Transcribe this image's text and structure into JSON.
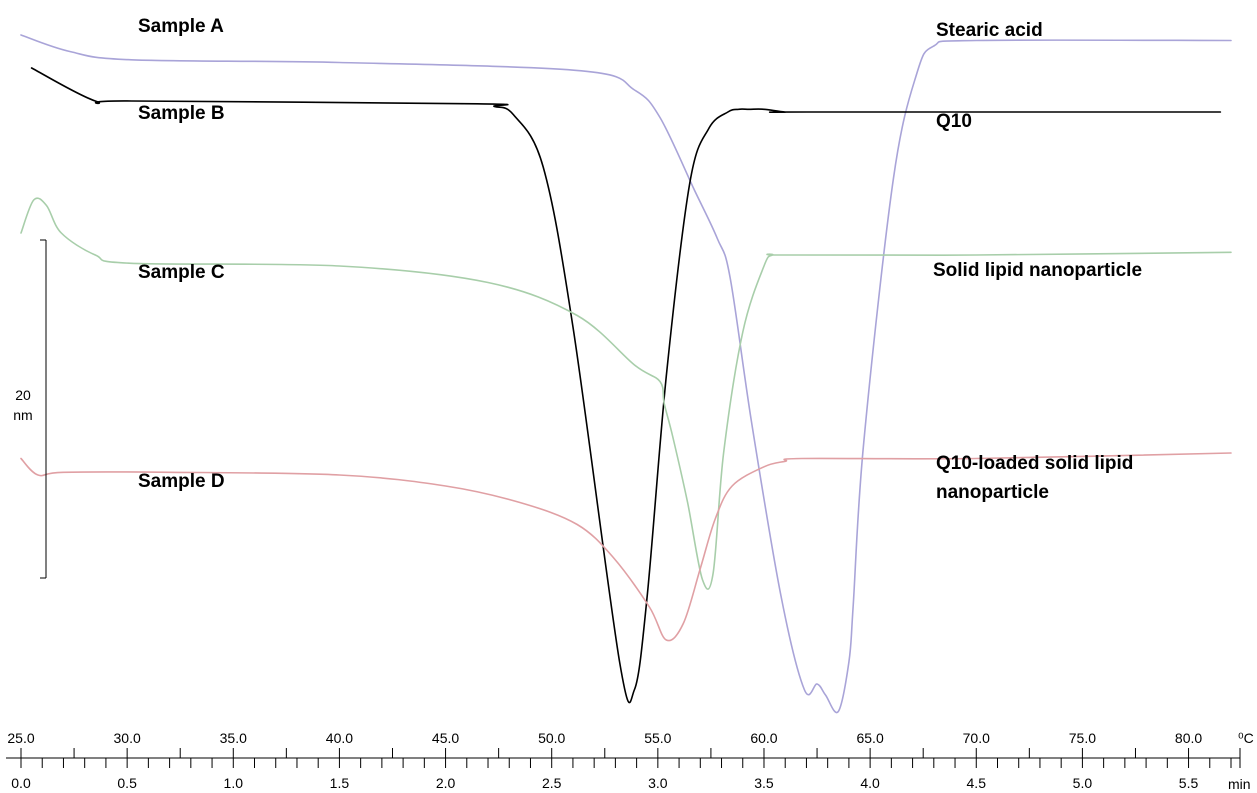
{
  "chart_data": {
    "type": "line",
    "title": "",
    "scale_bar": {
      "value": "20",
      "unit": "nm"
    },
    "x_axes": {
      "temperature": {
        "unit": "⁰C",
        "min": 25.0,
        "max": 82.0,
        "tick_labels": [
          "25.0",
          "30.0",
          "35.0",
          "40.0",
          "45.0",
          "50.0",
          "55.0",
          "60.0",
          "65.0",
          "70.0",
          "75.0",
          "80.0"
        ]
      },
      "time": {
        "unit": "min",
        "min": 0.0,
        "max": 5.7,
        "tick_labels": [
          "0.0",
          "0.5",
          "1.0",
          "1.5",
          "2.0",
          "2.5",
          "3.0",
          "3.5",
          "4.0",
          "4.5",
          "5.0",
          "5.5"
        ]
      }
    },
    "series": [
      {
        "name": "Stearic acid",
        "sample": "Sample A",
        "color": "#a9a4d8",
        "x": [
          25.0,
          27.3,
          30.2,
          40.0,
          51.4,
          53.9,
          55.1,
          56.7,
          57.8,
          58.4,
          59.4,
          60.8,
          61.9,
          62.5,
          62.9,
          63.5,
          64.0,
          64.2,
          64.7,
          66.1,
          67.2,
          68.0,
          70.0,
          82.0
        ],
        "y": [
          -4.0,
          -7.0,
          -8.5,
          -9.0,
          -10.5,
          -14.0,
          -19.0,
          -32.0,
          -41.0,
          -48.0,
          -74.0,
          -106.0,
          -123.0,
          -122.0,
          -124.0,
          -127.0,
          -118.0,
          -108.0,
          -78.0,
          -30.0,
          -11.0,
          -6.0,
          -5.0,
          -5.0
        ]
      },
      {
        "name": "Q10",
        "sample": "Sample B",
        "color": "#000000",
        "x": [
          25.5,
          28.5,
          30.2,
          46.5,
          47.3,
          48.2,
          49.6,
          51.0,
          53.2,
          53.9,
          54.5,
          55.4,
          56.5,
          57.4,
          58.3,
          58.8,
          59.3,
          60.0,
          61.0,
          62.0,
          81.5
        ],
        "y": [
          -10.0,
          -16.0,
          -16.0,
          -16.5,
          -17.0,
          -18.5,
          -28.0,
          -57.0,
          -118.0,
          -123.0,
          -106.0,
          -66.0,
          -31.0,
          -21.0,
          -18.0,
          -17.5,
          -17.5,
          -17.5,
          -18.0,
          -18.0,
          -18.0
        ]
      },
      {
        "name": "Solid lipid nanoparticle",
        "sample": "Sample C",
        "color": "#a8ceaa",
        "x": [
          25.0,
          25.6,
          26.2,
          26.9,
          28.5,
          30.2,
          40.0,
          47.0,
          51.2,
          53.9,
          55.1,
          55.3,
          55.7,
          56.4,
          57.1,
          57.6,
          58.1,
          59.0,
          60.0,
          60.4,
          61.0,
          70.0,
          82.0
        ],
        "y": [
          -40.0,
          -34.0,
          -35.0,
          -40.0,
          -44.0,
          -45.5,
          -46.0,
          -49.0,
          -55.0,
          -64.0,
          -67.0,
          -71.0,
          -77.0,
          -89.0,
          -103.0,
          -102.0,
          -80.0,
          -58.0,
          -46.0,
          -44.0,
          -44.0,
          -44.0,
          -43.5
        ]
      },
      {
        "name": "Q10-loaded solid lipid nanoparticle",
        "sample": "Sample D",
        "color": "#e0a0a4",
        "x": [
          25.0,
          25.8,
          27.0,
          32.0,
          40.0,
          45.0,
          48.5,
          51.2,
          52.9,
          54.6,
          55.4,
          56.2,
          57.0,
          57.7,
          58.5,
          60.0,
          61.0,
          61.8,
          70.0,
          82.0
        ],
        "y": [
          -81.0,
          -84.0,
          -83.5,
          -83.5,
          -84.0,
          -86.0,
          -89.0,
          -93.0,
          -99.0,
          -108.0,
          -114.0,
          -111.0,
          -101.0,
          -92.0,
          -86.0,
          -82.5,
          -81.5,
          -81.0,
          -81.0,
          -80.0
        ]
      }
    ]
  },
  "labels": {
    "sample_a": "Sample A",
    "sample_b": "Sample B",
    "sample_c": "Sample C",
    "sample_d": "Sample D",
    "stearic_acid": "Stearic acid",
    "q10": "Q10",
    "sln": "Solid lipid nanoparticle",
    "q10_sln_line1": "Q10-loaded solid lipid",
    "q10_sln_line2": "nanoparticle"
  }
}
